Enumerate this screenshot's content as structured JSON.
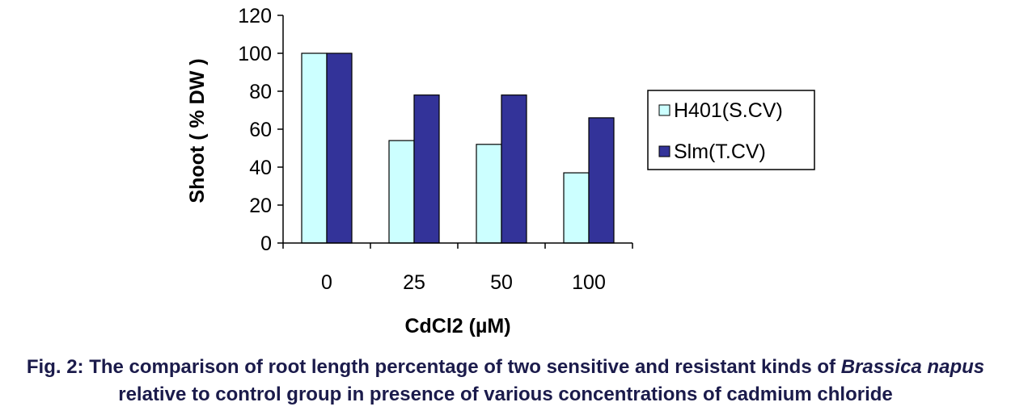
{
  "chart_data": {
    "type": "bar",
    "categories": [
      "0",
      "25",
      "50",
      "100"
    ],
    "series": [
      {
        "name": "H401(S.CV)",
        "values": [
          100,
          54,
          52,
          37
        ],
        "color": "#ccffff"
      },
      {
        "name": "Slm(T.CV)",
        "values": [
          100,
          78,
          78,
          66
        ],
        "color": "#333399"
      }
    ],
    "ylim": [
      0,
      120
    ],
    "yticks": [
      0,
      20,
      40,
      60,
      80,
      100,
      120
    ],
    "ylabel": "Shoot ( % DW )",
    "xlabel": "CdCl2 (µM)",
    "legend_position": "right",
    "grid": false
  },
  "caption": {
    "lead": "Fig. 2: The comparison of root length percentage of two sensitive and resistant kinds of ",
    "species": "Brassica napus",
    "tail": " relative to control group in presence of various concentrations of cadmium chloride"
  }
}
